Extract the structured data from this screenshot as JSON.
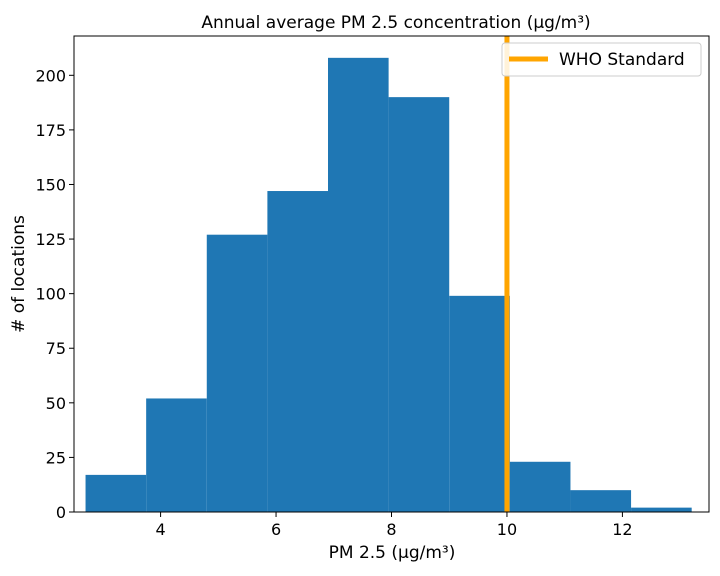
{
  "chart_data": {
    "type": "bar",
    "title": "Annual average PM 2.5 concentration (μg/m³)",
    "xlabel": "PM 2.5 (μg/m³)",
    "ylabel": "# of locations",
    "xlim": [
      2.5,
      13.5
    ],
    "ylim": [
      0,
      218
    ],
    "xticks": [
      4,
      6,
      8,
      10,
      12
    ],
    "yticks": [
      0,
      25,
      50,
      75,
      100,
      125,
      150,
      175,
      200
    ],
    "bins": [
      {
        "x0": 2.7,
        "x1": 3.75,
        "count": 17
      },
      {
        "x0": 3.75,
        "x1": 4.8,
        "count": 52
      },
      {
        "x0": 4.8,
        "x1": 5.85,
        "count": 127
      },
      {
        "x0": 5.85,
        "x1": 6.9,
        "count": 147
      },
      {
        "x0": 6.9,
        "x1": 7.95,
        "count": 208
      },
      {
        "x0": 7.95,
        "x1": 9.0,
        "count": 190
      },
      {
        "x0": 9.0,
        "x1": 10.05,
        "count": 99
      },
      {
        "x0": 10.05,
        "x1": 11.1,
        "count": 23
      },
      {
        "x0": 11.1,
        "x1": 12.15,
        "count": 10
      },
      {
        "x0": 12.15,
        "x1": 13.2,
        "count": 2
      }
    ],
    "bar_color": "#1f77b4",
    "reference_line": {
      "name": "WHO Standard",
      "x": 10,
      "color": "#ffa500"
    },
    "legend_position": "top-right",
    "grid": false
  }
}
